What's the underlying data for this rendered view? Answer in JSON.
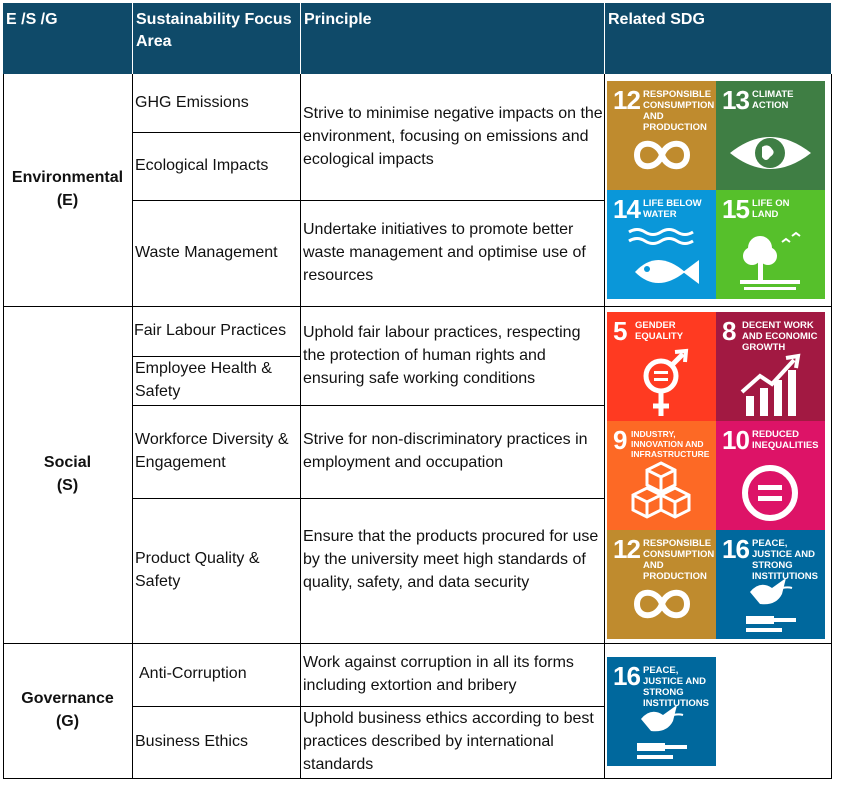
{
  "header": {
    "col1": "E /S /G",
    "col2": "Sustainability Focus Area",
    "col3": "Principle",
    "col4": "Related SDG"
  },
  "groups": {
    "environmental": {
      "name": "Environmental",
      "code": "(E)"
    },
    "social": {
      "name": "Social",
      "code": "(S)"
    },
    "governance": {
      "name": "Governance",
      "code": "(G)"
    }
  },
  "focus_areas": {
    "ghg": "GHG Emissions",
    "ecological": "Ecological Impacts",
    "waste": "Waste Management",
    "fair_labour": "Fair Labour Practices",
    "health_safety": "Employee Health & Safety",
    "diversity": "Workforce Diversity & Engagement",
    "product": "Product Quality & Safety",
    "anti_corruption": "Anti-Corruption",
    "ethics": "Business Ethics"
  },
  "principles": {
    "env1": "Strive to minimise negative impacts on the environment, focusing on emissions and ecological impacts",
    "env2": "Undertake initiatives to promote better waste management and optimise use of resources",
    "soc1": "Uphold fair labour practices, respecting the protection of human rights and ensuring safe working conditions",
    "soc2": "Strive for non-discriminatory practices in employment and occupation",
    "soc3": "Ensure that the products procured for use by the university meet high standards of quality, safety, and data security",
    "gov1": "Work against corruption in all its forms including extortion and bribery",
    "gov2": "Uphold business ethics according to best practices described by international standards"
  },
  "sdg_tiles": {
    "sdg12a": {
      "num": "12",
      "title": "Responsible Consumption and Production",
      "color": "#bf8b2e",
      "icon": "infinity-icon"
    },
    "sdg13": {
      "num": "13",
      "title": "Climate Action",
      "color": "#3f7e44",
      "icon": "eye-globe-icon"
    },
    "sdg14": {
      "num": "14",
      "title": "Life Below Water",
      "color": "#0a97d9",
      "icon": "fish-icon"
    },
    "sdg15": {
      "num": "15",
      "title": "Life On Land",
      "color": "#56c02b",
      "icon": "tree-icon"
    },
    "sdg5": {
      "num": "5",
      "title": "Gender Equality",
      "color": "#ff3a21",
      "icon": "gender-icon"
    },
    "sdg8": {
      "num": "8",
      "title": "Decent Work and Economic Growth",
      "color": "#a21942",
      "icon": "growth-chart-icon"
    },
    "sdg9": {
      "num": "9",
      "title": "Industry, Innovation and Infrastructure",
      "color": "#fd6925",
      "icon": "cubes-icon"
    },
    "sdg10": {
      "num": "10",
      "title": "Reduced Inequalities",
      "color": "#dd1367",
      "icon": "equal-icon"
    },
    "sdg12b": {
      "num": "12",
      "title": "Responsible Consumption and Production",
      "color": "#bf8b2e",
      "icon": "infinity-icon"
    },
    "sdg16a": {
      "num": "16",
      "title": "Peace, Justice and Strong Institutions",
      "color": "#00689d",
      "icon": "dove-gavel-icon"
    },
    "sdg16b": {
      "num": "16",
      "title": "Peace, Justice and Strong Institutions",
      "color": "#00689d",
      "icon": "dove-gavel-icon"
    }
  }
}
